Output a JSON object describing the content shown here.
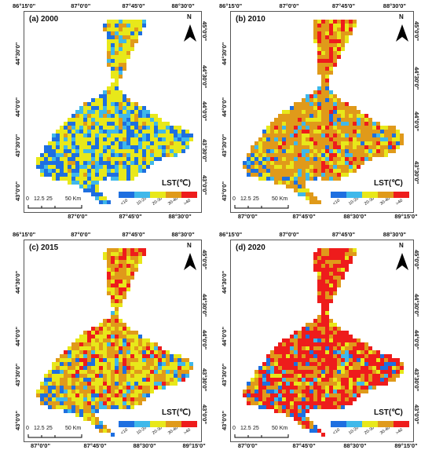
{
  "colors": {
    "lt10": "#1e6fe0",
    "r10_20": "#3fb8ea",
    "r20_30": "#e8e81a",
    "r30_40": "#e09a1a",
    "gt40": "#ee1c1c"
  },
  "legend": {
    "title": "LST(℃)",
    "labels": [
      "<10",
      "10-20",
      "20-30",
      "30-40",
      ">40"
    ]
  },
  "scale": {
    "labels": [
      "0",
      "12.5",
      "25",
      "50 Km"
    ]
  },
  "north": {
    "label": "N"
  },
  "panels": [
    {
      "title": "(a) 2000",
      "top_ticks": [
        "86°15'0\"",
        "87°0'0\"",
        "87°45'0\"",
        "88°30'0\""
      ],
      "bottom_ticks": [
        "87°0'0\"",
        "87°45'0\"",
        "88°30'0\""
      ],
      "left_ticks": [
        "44°30'0\"",
        "44°0'0\"",
        "43°30'0\"",
        "43°0'0\""
      ],
      "right_ticks": [
        "45°0'0\"",
        "44°30'0\"",
        "44°0'0\"",
        "43°30'0\"",
        "43°0'0\""
      ],
      "mix": [
        0.22,
        0.18,
        0.52,
        0.08,
        0.0
      ]
    },
    {
      "title": "(b) 2010",
      "top_ticks": [
        "86°15'0\"",
        "87°0'0\"",
        "87°45'0\"",
        "88°30'0\""
      ],
      "bottom_ticks": [
        "87°0'0\"",
        "87°45'0\"",
        "88°30'0\"",
        "89°15'0\""
      ],
      "left_ticks": [
        "44°30'0\"",
        "44°0'0\"",
        "43°30'0\"",
        "43°0'0\""
      ],
      "right_ticks": [
        "45°0'0\"",
        "44°30'0\"",
        "44°0'0\"",
        "43°30'0\""
      ],
      "mix": [
        0.05,
        0.08,
        0.2,
        0.55,
        0.12
      ]
    },
    {
      "title": "(c) 2015",
      "top_ticks": [
        "86°15'0\"",
        "87°0'0\"",
        "87°45'0\"",
        "88°30'0\""
      ],
      "bottom_ticks": [
        "87°0'0\"",
        "87°45'0\"",
        "88°30'0\"",
        "89°15'0\""
      ],
      "left_ticks": [
        "44°30'0\"",
        "44°0'0\"",
        "43°30'0\"",
        "43°0'0\""
      ],
      "right_ticks": [
        "45°0'0\"",
        "44°30'0\"",
        "44°0'0\"",
        "43°30'0\"",
        "43°0'0\""
      ],
      "mix": [
        0.06,
        0.08,
        0.36,
        0.38,
        0.12
      ]
    },
    {
      "title": "(d) 2020",
      "top_ticks": [
        "86°15'0\"",
        "87°0'0\"",
        "87°45'0\"",
        "88°30'0\""
      ],
      "bottom_ticks": [
        "87°0'0\"",
        "87°45'0\"",
        "88°30'0\"",
        "89°15'0\""
      ],
      "left_ticks": [
        "44°30'0\"",
        "44°0'0\"",
        "43°30'0\"",
        "43°0'0\""
      ],
      "right_ticks": [
        "45°0'0\"",
        "44°30'0\"",
        "44°0'0\"",
        "43°30'0\"",
        "43°0'0\""
      ],
      "mix": [
        0.04,
        0.05,
        0.1,
        0.26,
        0.55
      ]
    }
  ]
}
